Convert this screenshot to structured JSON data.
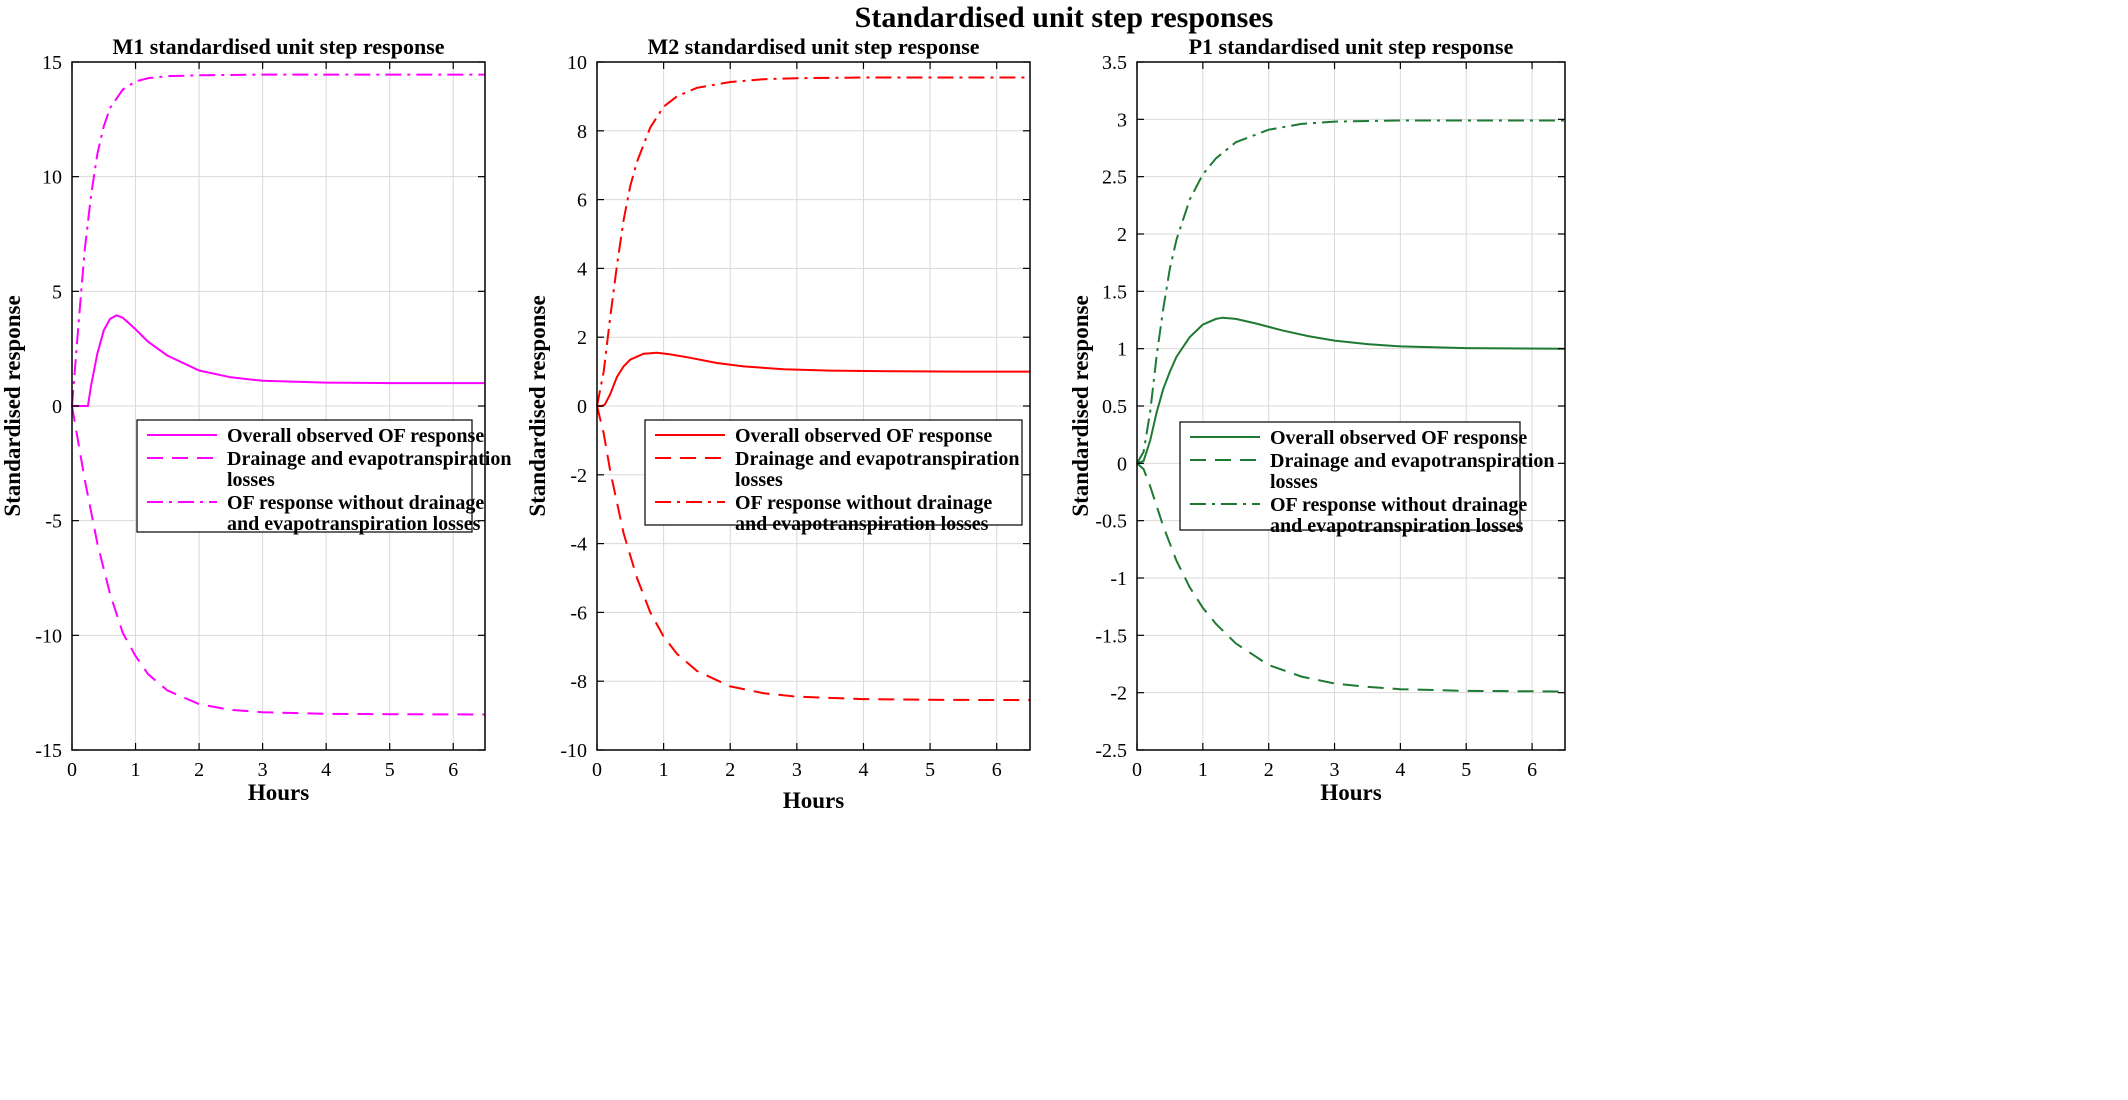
{
  "figure": {
    "title": "Standardised unit step responses"
  },
  "chart_data": [
    {
      "type": "line",
      "title": "M1 standardised unit step response",
      "xlabel": "Hours",
      "ylabel": "Standardised response",
      "xlim": [
        0,
        6.5
      ],
      "ylim": [
        -15,
        15
      ],
      "xticks": [
        0,
        1,
        2,
        3,
        4,
        5,
        6
      ],
      "yticks": [
        -15,
        -10,
        -5,
        0,
        5,
        10,
        15
      ],
      "xtick_labels": [
        "0",
        "1",
        "2",
        "3",
        "4",
        "5",
        "6"
      ],
      "ytick_labels": [
        "-15",
        "-10",
        "-5",
        "0",
        "5",
        "10",
        "15"
      ],
      "grid": true,
      "legend_position": "center",
      "color": "#ff00ff",
      "series": [
        {
          "name": "Overall observed OF response",
          "style": "solid",
          "x": [
            0,
            0.15,
            0.25,
            0.3,
            0.4,
            0.5,
            0.6,
            0.7,
            0.8,
            1.0,
            1.2,
            1.5,
            2.0,
            2.5,
            3.0,
            4.0,
            5.0,
            6.5
          ],
          "y": [
            0,
            0,
            0,
            0.9,
            2.3,
            3.3,
            3.8,
            3.95,
            3.85,
            3.35,
            2.8,
            2.2,
            1.55,
            1.25,
            1.1,
            1.02,
            1.0,
            1.0
          ]
        },
        {
          "name": "Drainage and evapotranspiration losses",
          "style": "dashed",
          "x": [
            0,
            0.2,
            0.4,
            0.6,
            0.8,
            1.0,
            1.2,
            1.5,
            2.0,
            2.5,
            3.0,
            4.0,
            5.0,
            6.5
          ],
          "y": [
            0,
            -3.2,
            -6.0,
            -8.2,
            -9.9,
            -10.9,
            -11.7,
            -12.4,
            -13.0,
            -13.25,
            -13.35,
            -13.42,
            -13.44,
            -13.45
          ]
        },
        {
          "name": "OF response without drainage and evapotranspiration losses",
          "style": "dashdot",
          "x": [
            0,
            0.1,
            0.2,
            0.3,
            0.4,
            0.5,
            0.6,
            0.8,
            1.0,
            1.2,
            1.5,
            2.0,
            3.0,
            4.0,
            6.5
          ],
          "y": [
            0,
            3.5,
            6.8,
            9.2,
            11.0,
            12.2,
            13.0,
            13.8,
            14.15,
            14.3,
            14.38,
            14.42,
            14.45,
            14.45,
            14.45
          ]
        }
      ],
      "legend": [
        {
          "line1": "Overall observed OF response",
          "line2": "",
          "style": "solid"
        },
        {
          "line1": "Drainage and evapotranspiration",
          "line2": "losses",
          "style": "dashed"
        },
        {
          "line1": "OF response without drainage",
          "line2": "and evapotranspiration losses",
          "style": "dashdot"
        }
      ]
    },
    {
      "type": "line",
      "title": "M2 standardised unit step response",
      "xlabel": "Hours",
      "ylabel": "Standardised response",
      "xlim": [
        0,
        6.5
      ],
      "ylim": [
        -10,
        10
      ],
      "xticks": [
        0,
        1,
        2,
        3,
        4,
        5,
        6
      ],
      "yticks": [
        -10,
        -8,
        -6,
        -4,
        -2,
        0,
        2,
        4,
        6,
        8,
        10
      ],
      "xtick_labels": [
        "0",
        "1",
        "2",
        "3",
        "4",
        "5",
        "6"
      ],
      "ytick_labels": [
        "-10",
        "-8",
        "-6",
        "-4",
        "-2",
        "0",
        "2",
        "4",
        "6",
        "8",
        "10"
      ],
      "grid": true,
      "legend_position": "center",
      "color": "#ff0000",
      "series": [
        {
          "name": "Overall observed OF response",
          "style": "solid",
          "x": [
            0,
            0.08,
            0.12,
            0.2,
            0.3,
            0.4,
            0.5,
            0.7,
            0.9,
            1.1,
            1.4,
            1.8,
            2.2,
            2.8,
            3.5,
            4.5,
            5.5,
            6.5
          ],
          "y": [
            0,
            0,
            0.05,
            0.35,
            0.85,
            1.15,
            1.35,
            1.52,
            1.55,
            1.5,
            1.4,
            1.25,
            1.15,
            1.07,
            1.03,
            1.01,
            1.0,
            1.0
          ]
        },
        {
          "name": "Drainage and evapotranspiration losses",
          "style": "dashed",
          "x": [
            0,
            0.1,
            0.2,
            0.4,
            0.6,
            0.8,
            1.0,
            1.2,
            1.5,
            2.0,
            2.5,
            3.0,
            4.0,
            5.0,
            6.5
          ],
          "y": [
            0,
            -0.8,
            -1.9,
            -3.7,
            -5.0,
            -6.0,
            -6.7,
            -7.2,
            -7.7,
            -8.15,
            -8.35,
            -8.45,
            -8.52,
            -8.54,
            -8.55
          ]
        },
        {
          "name": "OF response without drainage and evapotranspiration losses",
          "style": "dashdot",
          "x": [
            0,
            0.1,
            0.2,
            0.3,
            0.4,
            0.5,
            0.6,
            0.8,
            1.0,
            1.2,
            1.5,
            2.0,
            2.5,
            3.0,
            4.0,
            6.5
          ],
          "y": [
            0,
            1.0,
            2.6,
            4.1,
            5.4,
            6.4,
            7.1,
            8.1,
            8.7,
            9.0,
            9.25,
            9.42,
            9.5,
            9.53,
            9.55,
            9.55
          ]
        }
      ],
      "legend": [
        {
          "line1": "Overall observed OF response",
          "line2": "",
          "style": "solid"
        },
        {
          "line1": "Drainage and evapotranspiration",
          "line2": "losses",
          "style": "dashed"
        },
        {
          "line1": "OF response without drainage",
          "line2": "and evapotranspiration losses",
          "style": "dashdot"
        }
      ]
    },
    {
      "type": "line",
      "title": "P1 standardised unit step response",
      "xlabel": "Hours",
      "ylabel": "Standardised response",
      "xlim": [
        0,
        6.5
      ],
      "ylim": [
        -2.5,
        3.5
      ],
      "xticks": [
        0,
        1,
        2,
        3,
        4,
        5,
        6
      ],
      "yticks": [
        -2.5,
        -2,
        -1.5,
        -1,
        -0.5,
        0,
        0.5,
        1,
        1.5,
        2,
        2.5,
        3,
        3.5
      ],
      "xtick_labels": [
        "0",
        "1",
        "2",
        "3",
        "4",
        "5",
        "6"
      ],
      "ytick_labels": [
        "-2.5",
        "-2",
        "-1.5",
        "-1",
        "-0.5",
        "0",
        "0.5",
        "1",
        "1.5",
        "2",
        "2.5",
        "3",
        "3.5"
      ],
      "grid": true,
      "legend_position": "center",
      "color": "#1e7a32",
      "series": [
        {
          "name": "Overall observed OF response",
          "style": "solid",
          "x": [
            0,
            0.1,
            0.2,
            0.3,
            0.4,
            0.5,
            0.6,
            0.8,
            1.0,
            1.2,
            1.3,
            1.5,
            1.8,
            2.2,
            2.6,
            3.0,
            3.5,
            4.0,
            5.0,
            6.5
          ],
          "y": [
            0,
            0.02,
            0.2,
            0.45,
            0.65,
            0.8,
            0.93,
            1.1,
            1.21,
            1.26,
            1.27,
            1.26,
            1.22,
            1.16,
            1.11,
            1.07,
            1.04,
            1.02,
            1.005,
            1.0
          ]
        },
        {
          "name": "Drainage and evapotranspiration losses",
          "style": "dashed",
          "x": [
            0,
            0.1,
            0.2,
            0.4,
            0.6,
            0.8,
            1.0,
            1.2,
            1.5,
            2.0,
            2.5,
            3.0,
            3.5,
            4.0,
            5.0,
            6.5
          ],
          "y": [
            0,
            -0.05,
            -0.2,
            -0.55,
            -0.85,
            -1.08,
            -1.26,
            -1.4,
            -1.57,
            -1.76,
            -1.86,
            -1.92,
            -1.95,
            -1.97,
            -1.985,
            -1.99
          ]
        },
        {
          "name": "OF response without drainage and evapotranspiration losses",
          "style": "dashdot",
          "x": [
            0,
            0.1,
            0.2,
            0.3,
            0.4,
            0.5,
            0.6,
            0.8,
            1.0,
            1.2,
            1.5,
            2.0,
            2.5,
            3.0,
            4.0,
            5.0,
            6.5
          ],
          "y": [
            0,
            0.1,
            0.45,
            0.95,
            1.35,
            1.7,
            1.95,
            2.3,
            2.52,
            2.66,
            2.8,
            2.91,
            2.96,
            2.98,
            2.99,
            2.99,
            2.99
          ]
        }
      ],
      "legend": [
        {
          "line1": "Overall observed OF response",
          "line2": "",
          "style": "solid"
        },
        {
          "line1": "Drainage and evapotranspiration",
          "line2": "losses",
          "style": "dashed"
        },
        {
          "line1": "OF response without drainage",
          "line2": "and evapotranspiration losses",
          "style": "dashdot"
        }
      ]
    }
  ]
}
